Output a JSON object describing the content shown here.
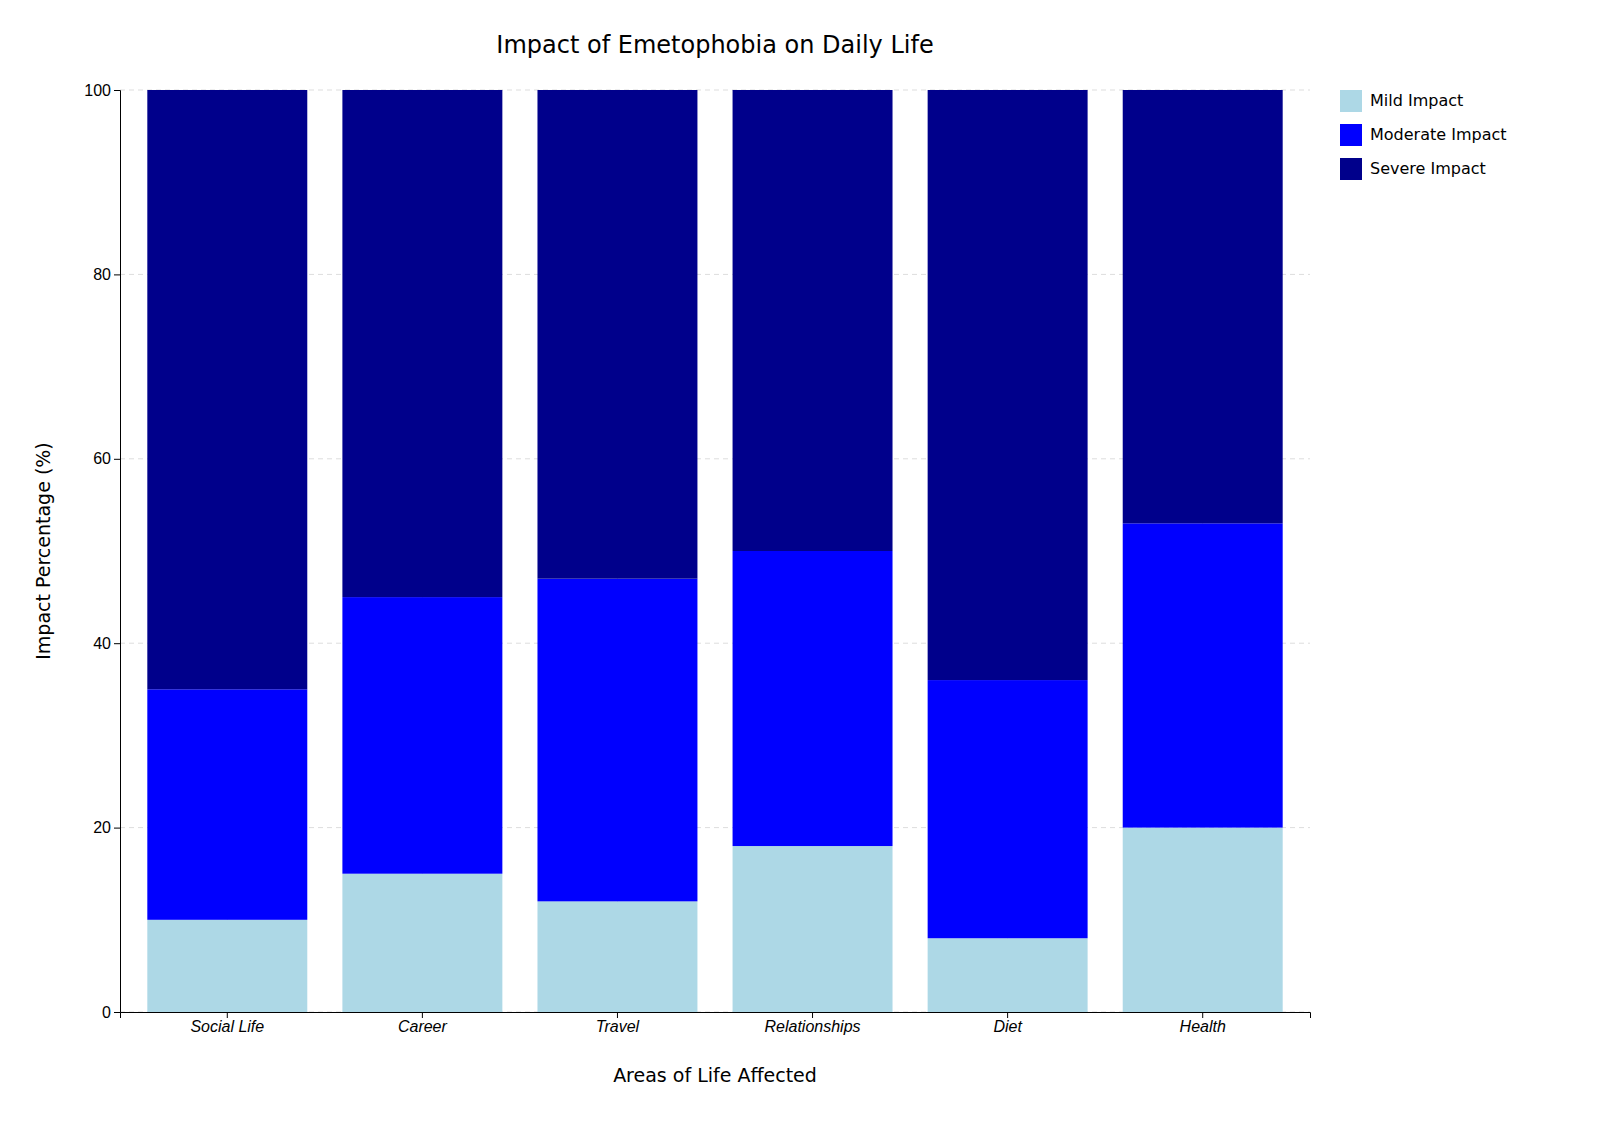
{
  "chart_data": {
    "type": "bar",
    "stacked": true,
    "title": "Impact of Emetophobia on Daily Life",
    "xlabel": "Areas of Life Affected",
    "ylabel": "Impact Percentage (%)",
    "categories": [
      "Social Life",
      "Career",
      "Travel",
      "Relationships",
      "Diet",
      "Health"
    ],
    "series": [
      {
        "name": "Mild Impact",
        "color": "#ADD8E6",
        "values": [
          10,
          15,
          12,
          18,
          8,
          20
        ]
      },
      {
        "name": "Moderate Impact",
        "color": "#0000FF",
        "values": [
          25,
          30,
          35,
          32,
          28,
          33
        ]
      },
      {
        "name": "Severe Impact",
        "color": "#00008B",
        "values": [
          65,
          55,
          53,
          50,
          64,
          47
        ]
      }
    ],
    "ylim": [
      0,
      100
    ],
    "yticks": [
      0,
      20,
      40,
      60,
      80,
      100
    ],
    "grid": true,
    "legend": "upper right"
  }
}
